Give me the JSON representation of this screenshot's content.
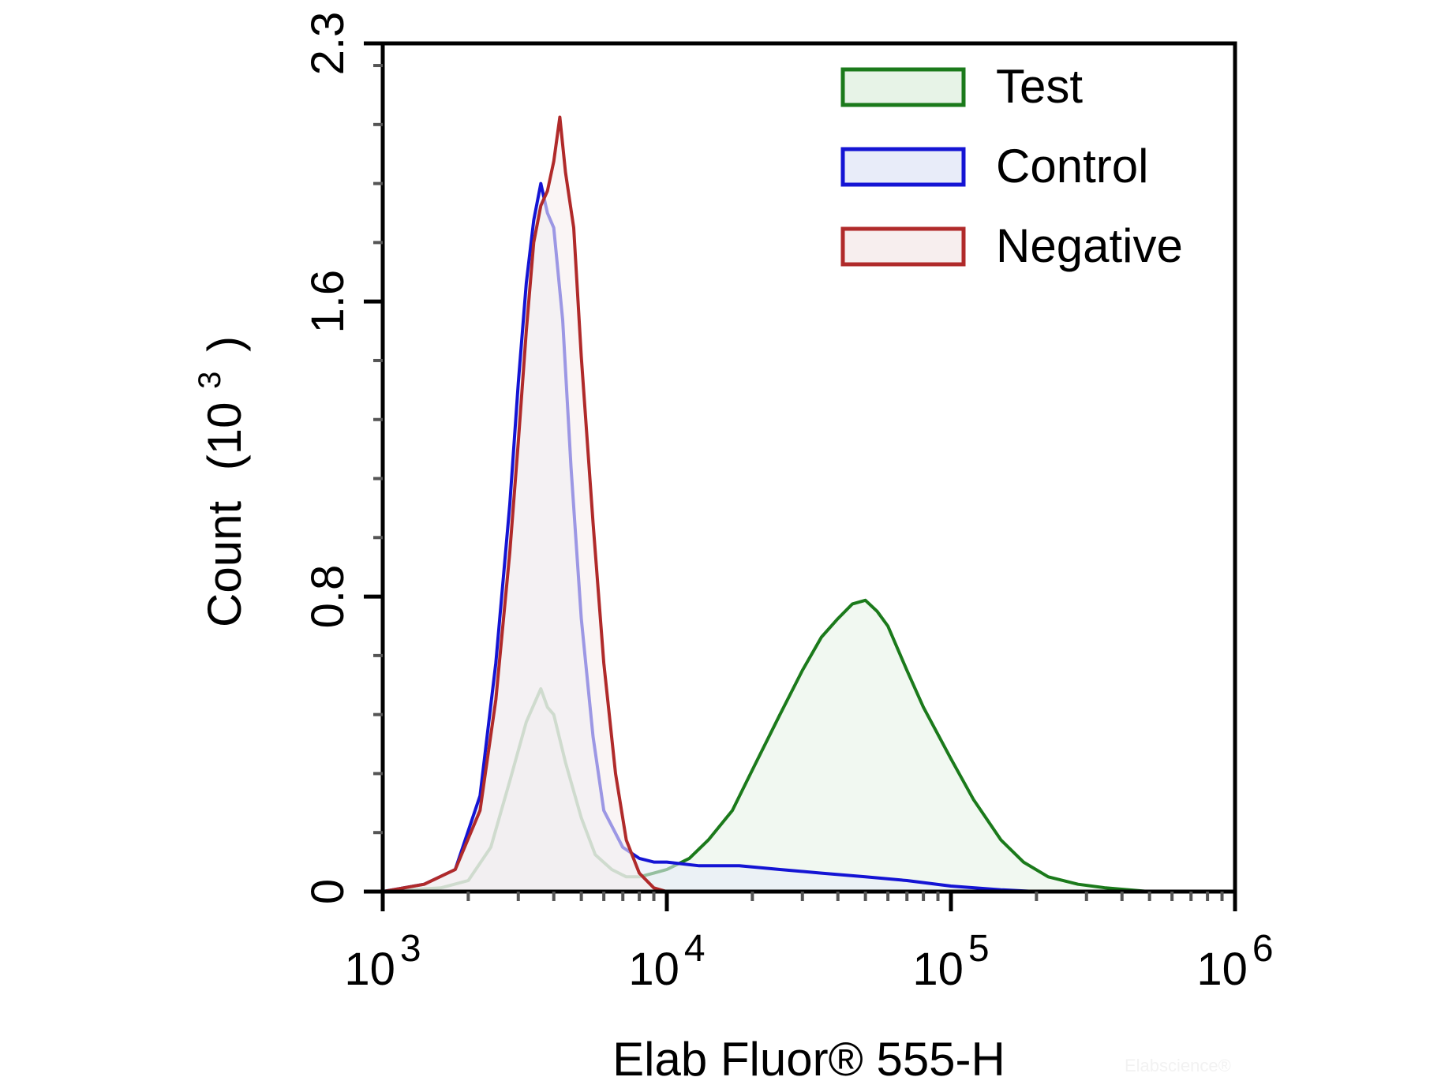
{
  "chart_data": {
    "type": "area",
    "xlabel": "Elab Fluor® 555-H",
    "ylabel": "Count",
    "ylabel_unit": "(10",
    "ylabel_unit_exp": "3",
    "ylabel_unit_close": ")",
    "x_scale": "log",
    "xlim": [
      1000,
      1000000
    ],
    "ylim": [
      0,
      2.3
    ],
    "x_ticks": [
      {
        "base": "10",
        "exp": "3",
        "value": 1000
      },
      {
        "base": "10",
        "exp": "4",
        "value": 10000
      },
      {
        "base": "10",
        "exp": "5",
        "value": 100000
      },
      {
        "base": "10",
        "exp": "6",
        "value": 1000000
      }
    ],
    "y_ticks": [
      {
        "label": "0",
        "value": 0
      },
      {
        "label": "0.8",
        "value": 0.8
      },
      {
        "label": "1.6",
        "value": 1.6
      },
      {
        "label": "2.3",
        "value": 2.3
      }
    ],
    "legend_position": "top-right",
    "grid": false,
    "series": [
      {
        "name": "Test",
        "stroke": "#1b7a1b",
        "fill": "#e7f3e7",
        "x": [
          1000,
          1600,
          2000,
          2400,
          2800,
          3200,
          3600,
          3800,
          4000,
          4400,
          5000,
          5600,
          6400,
          7200,
          8000,
          9000,
          10000,
          12000,
          14000,
          17000,
          20000,
          25000,
          30000,
          35000,
          40000,
          45000,
          50000,
          55000,
          60000,
          70000,
          80000,
          100000,
          120000,
          150000,
          180000,
          220000,
          280000,
          350000,
          500000,
          1000000
        ],
        "y": [
          0,
          0.01,
          0.03,
          0.12,
          0.3,
          0.46,
          0.55,
          0.5,
          0.48,
          0.35,
          0.2,
          0.1,
          0.06,
          0.04,
          0.04,
          0.05,
          0.06,
          0.09,
          0.14,
          0.22,
          0.33,
          0.48,
          0.6,
          0.69,
          0.74,
          0.78,
          0.79,
          0.76,
          0.72,
          0.6,
          0.5,
          0.36,
          0.25,
          0.14,
          0.08,
          0.04,
          0.02,
          0.01,
          0.0,
          0
        ]
      },
      {
        "name": "Control",
        "stroke": "#1414d4",
        "fill": "#e8ecf9",
        "x": [
          1000,
          1400,
          1800,
          2200,
          2500,
          2800,
          3000,
          3200,
          3400,
          3600,
          3800,
          4000,
          4300,
          4600,
          5000,
          5500,
          6000,
          7000,
          8000,
          9000,
          10000,
          13000,
          18000,
          25000,
          35000,
          50000,
          70000,
          100000,
          150000,
          200000,
          1000000
        ],
        "y": [
          0,
          0.02,
          0.06,
          0.26,
          0.62,
          1.05,
          1.38,
          1.65,
          1.82,
          1.92,
          1.84,
          1.8,
          1.55,
          1.15,
          0.74,
          0.42,
          0.22,
          0.12,
          0.09,
          0.08,
          0.08,
          0.07,
          0.07,
          0.06,
          0.05,
          0.04,
          0.03,
          0.015,
          0.005,
          0,
          0
        ]
      },
      {
        "name": "Negative",
        "stroke": "#b02a2a",
        "fill": "#f7eeee",
        "x": [
          1000,
          1400,
          1800,
          2200,
          2500,
          2800,
          3000,
          3200,
          3400,
          3600,
          3800,
          4000,
          4200,
          4400,
          4700,
          5000,
          5500,
          6000,
          6600,
          7200,
          8000,
          9000,
          10000,
          1000000
        ],
        "y": [
          0,
          0.02,
          0.06,
          0.22,
          0.52,
          0.92,
          1.22,
          1.52,
          1.76,
          1.86,
          1.9,
          1.98,
          2.1,
          1.95,
          1.8,
          1.45,
          1.0,
          0.62,
          0.32,
          0.14,
          0.05,
          0.01,
          0,
          0
        ]
      }
    ]
  },
  "watermark": "Elabscience®"
}
